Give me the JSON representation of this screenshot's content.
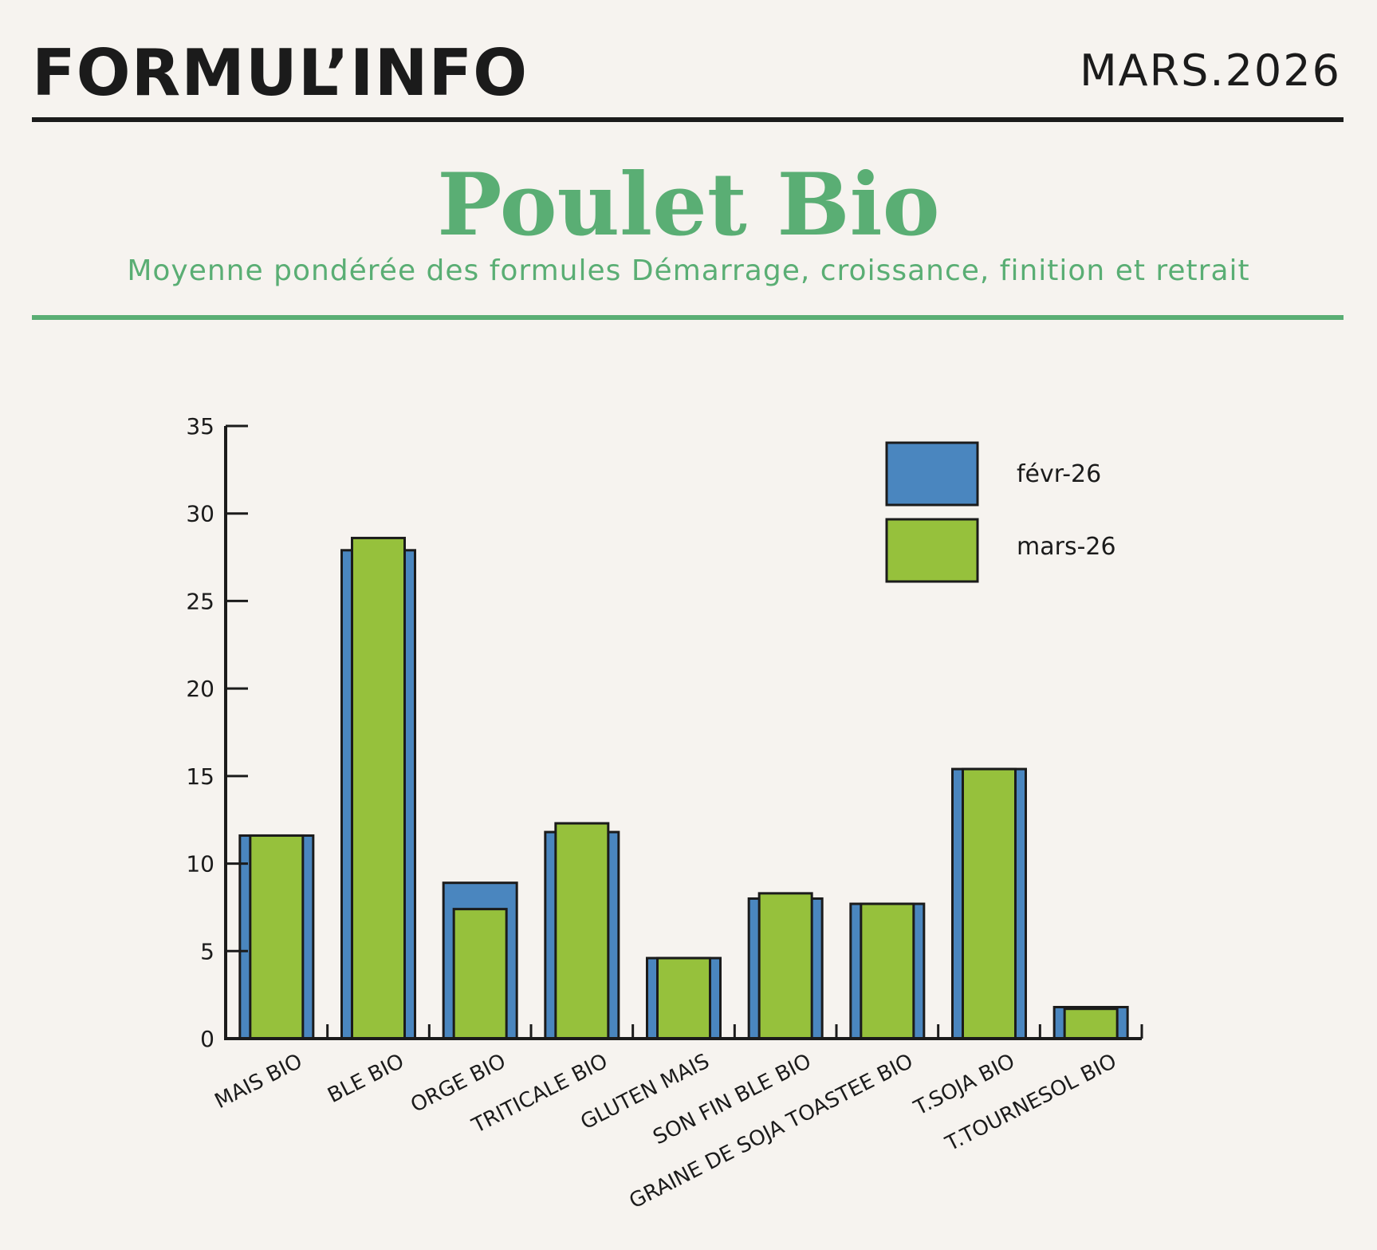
{
  "header": {
    "brand": "FORMUL’INFO",
    "issue": "MARS.2026"
  },
  "section": {
    "title": "Poulet Bio",
    "subtitle": "Moyenne pondérée des formules Démarrage, croissance, finition et retrait"
  },
  "colors": {
    "accent_green": "#5aae74",
    "series_feb": "#4a86bf",
    "series_mar": "#96c13c",
    "ink": "#1b1b1b",
    "background": "#f6f3ef"
  },
  "chart_data": {
    "type": "bar",
    "categories": [
      "MAIS BIO",
      "BLE BIO",
      "ORGE BIO",
      "TRITICALE BIO",
      "GLUTEN MAIS",
      "SON FIN BLE BIO",
      "GRAINE DE SOJA TOASTEE BIO",
      "T.SOJA BIO",
      "T.TOURNESOL BIO"
    ],
    "series": [
      {
        "name": "févr-26",
        "values": [
          11.6,
          27.9,
          8.9,
          11.8,
          4.6,
          8.0,
          7.7,
          15.4,
          1.8
        ]
      },
      {
        "name": "mars-26",
        "values": [
          11.6,
          28.6,
          7.4,
          12.3,
          4.6,
          8.3,
          7.7,
          15.4,
          1.7
        ]
      }
    ],
    "y_ticks": [
      0,
      5,
      10,
      15,
      20,
      25,
      30,
      35
    ],
    "ylim": [
      0,
      35
    ],
    "grid": false,
    "legend_position": "top-right"
  }
}
